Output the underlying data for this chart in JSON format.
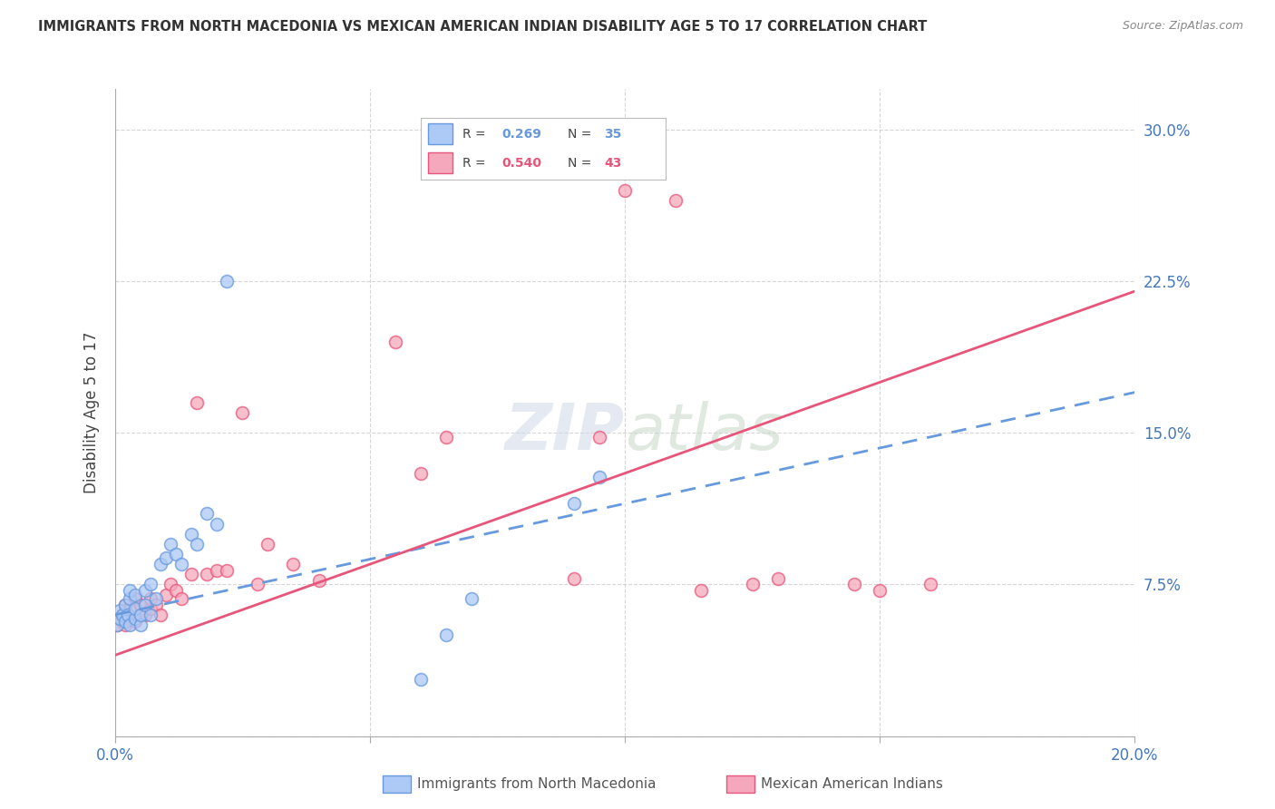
{
  "title": "IMMIGRANTS FROM NORTH MACEDONIA VS MEXICAN AMERICAN INDIAN DISABILITY AGE 5 TO 17 CORRELATION CHART",
  "source": "Source: ZipAtlas.com",
  "ylabel": "Disability Age 5 to 17",
  "xlim": [
    0.0,
    0.2
  ],
  "ylim": [
    0.0,
    0.32
  ],
  "xticks": [
    0.0,
    0.05,
    0.1,
    0.15,
    0.2
  ],
  "xticklabels": [
    "0.0%",
    "",
    "",
    "",
    "20.0%"
  ],
  "yticks_right": [
    0.0,
    0.075,
    0.15,
    0.225,
    0.3
  ],
  "yticklabels_right": [
    "",
    "7.5%",
    "15.0%",
    "22.5%",
    "30.0%"
  ],
  "grid_color": "#cccccc",
  "background_color": "#ffffff",
  "series1_label": "Immigrants from North Macedonia",
  "series1_color": "#adc9f5",
  "series1_R": "0.269",
  "series1_N": "35",
  "series1_line_color": "#6699dd",
  "series1_line_style": "--",
  "series2_label": "Mexican American Indians",
  "series2_color": "#f5a8bc",
  "series2_R": "0.540",
  "series2_N": "43",
  "series2_line_color": "#e8557a",
  "series2_line_style": "-",
  "blue_x": [
    0.0005,
    0.001,
    0.001,
    0.0015,
    0.002,
    0.002,
    0.0025,
    0.003,
    0.003,
    0.003,
    0.004,
    0.004,
    0.004,
    0.005,
    0.005,
    0.006,
    0.006,
    0.007,
    0.007,
    0.008,
    0.009,
    0.01,
    0.011,
    0.012,
    0.013,
    0.015,
    0.016,
    0.018,
    0.02,
    0.022,
    0.06,
    0.065,
    0.07,
    0.09,
    0.095
  ],
  "blue_y": [
    0.055,
    0.058,
    0.062,
    0.06,
    0.057,
    0.065,
    0.06,
    0.055,
    0.068,
    0.072,
    0.058,
    0.063,
    0.07,
    0.055,
    0.06,
    0.065,
    0.072,
    0.06,
    0.075,
    0.068,
    0.085,
    0.088,
    0.095,
    0.09,
    0.085,
    0.1,
    0.095,
    0.11,
    0.105,
    0.225,
    0.028,
    0.05,
    0.068,
    0.115,
    0.128
  ],
  "pink_x": [
    0.0005,
    0.001,
    0.0015,
    0.002,
    0.002,
    0.003,
    0.003,
    0.004,
    0.004,
    0.005,
    0.005,
    0.006,
    0.007,
    0.007,
    0.008,
    0.009,
    0.01,
    0.011,
    0.012,
    0.013,
    0.015,
    0.016,
    0.018,
    0.02,
    0.022,
    0.025,
    0.028,
    0.03,
    0.035,
    0.04,
    0.055,
    0.06,
    0.065,
    0.09,
    0.095,
    0.1,
    0.11,
    0.115,
    0.125,
    0.13,
    0.145,
    0.15,
    0.16
  ],
  "pink_y": [
    0.055,
    0.058,
    0.06,
    0.055,
    0.065,
    0.058,
    0.063,
    0.057,
    0.068,
    0.06,
    0.065,
    0.06,
    0.063,
    0.068,
    0.065,
    0.06,
    0.07,
    0.075,
    0.072,
    0.068,
    0.08,
    0.165,
    0.08,
    0.082,
    0.082,
    0.16,
    0.075,
    0.095,
    0.085,
    0.077,
    0.195,
    0.13,
    0.148,
    0.078,
    0.148,
    0.27,
    0.265,
    0.072,
    0.075,
    0.078,
    0.075,
    0.072,
    0.075
  ],
  "blue_line_x0": 0.0,
  "blue_line_y0": 0.06,
  "blue_line_x1": 0.2,
  "blue_line_y1": 0.17,
  "pink_line_x0": 0.0,
  "pink_line_y0": 0.04,
  "pink_line_x1": 0.2,
  "pink_line_y1": 0.22
}
